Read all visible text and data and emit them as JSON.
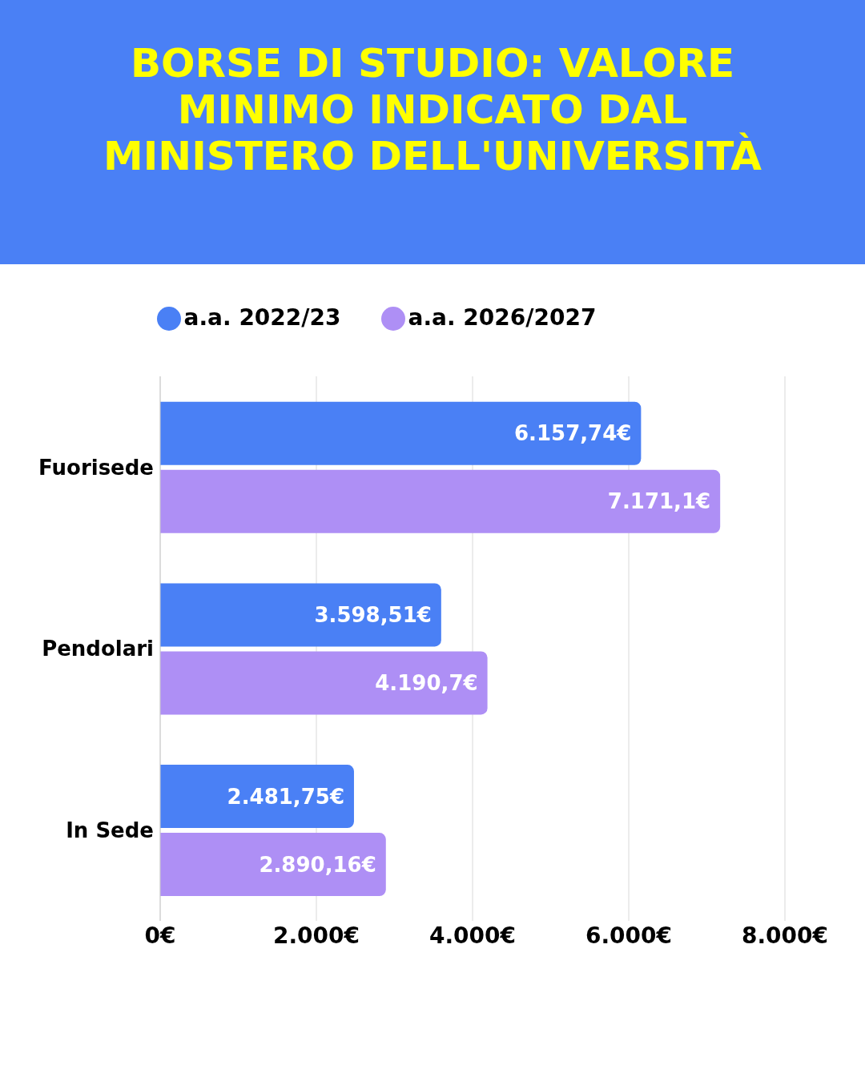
{
  "chart_data": {
    "type": "bar",
    "orientation": "horizontal",
    "title": "BORSE DI STUDIO: VALORE MINIMO INDICATO DAL MINISTERO DELL'UNIVERSITÀ",
    "categories": [
      "Fuorisede",
      "Pendolari",
      "In Sede"
    ],
    "series": [
      {
        "name": "a.a. 2022/23",
        "color": "#4a80f5",
        "values": [
          6157.74,
          3598.51,
          2481.75
        ],
        "value_labels": [
          "6.157,74€",
          "3.598,51€",
          "2.481,75€"
        ]
      },
      {
        "name": "a.a. 2026/2027",
        "color": "#ae8ff5",
        "values": [
          7171.1,
          4190.7,
          2890.16
        ],
        "value_labels": [
          "7.171,1€",
          "4.190,7€",
          "2.890,16€"
        ]
      }
    ],
    "xlim": [
      0,
      8000
    ],
    "xticks": [
      {
        "value": 0,
        "label": "0€"
      },
      {
        "value": 2000,
        "label": "2.000€"
      },
      {
        "value": 4000,
        "label": "4.000€"
      },
      {
        "value": 6000,
        "label": "6.000€"
      },
      {
        "value": 8000,
        "label": "8.000€"
      }
    ],
    "grid": "x",
    "legend": "top"
  }
}
